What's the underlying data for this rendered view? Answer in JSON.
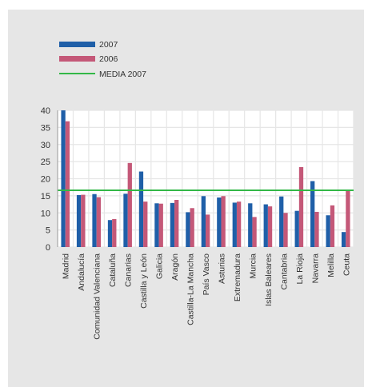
{
  "chart_data": {
    "type": "bar",
    "title": "",
    "xlabel": "",
    "ylabel": "",
    "ylim": [
      0,
      40
    ],
    "yticks": [
      0,
      5,
      10,
      15,
      20,
      25,
      30,
      35,
      40
    ],
    "grid": true,
    "legend_position": "top-left",
    "categories": [
      "Madrid",
      "Andalucía",
      "Comunidad Valenciana",
      "Cataluña",
      "Canarias",
      "Castilla y León",
      "Galicia",
      "Aragón",
      "Castilla-La Mancha",
      "País Vasco",
      "Asturias",
      "Extremadura",
      "Murcia",
      "Islas Baleares",
      "Cantabria",
      "La Rioja",
      "Navarra",
      "Melilla",
      "Ceuta"
    ],
    "series": [
      {
        "name": "2007",
        "color": "#1f5fa8",
        "values": [
          40,
          15.2,
          15.5,
          7.9,
          15.6,
          22.1,
          12.8,
          12.9,
          10.2,
          14.9,
          14.5,
          13,
          12.8,
          12.5,
          14.8,
          10.6,
          19.3,
          9.3,
          4.4
        ]
      },
      {
        "name": "2006",
        "color": "#c45878",
        "values": [
          36.8,
          15.3,
          14.6,
          8.2,
          24.6,
          13.3,
          12.7,
          13.8,
          11.4,
          9.5,
          14.9,
          13.3,
          8.8,
          11.9,
          10,
          23.4,
          10.3,
          12.2,
          16.4
        ]
      }
    ],
    "reference_line": {
      "name": "MEDIA 2007",
      "value": 16.6,
      "color": "#33b847"
    }
  }
}
